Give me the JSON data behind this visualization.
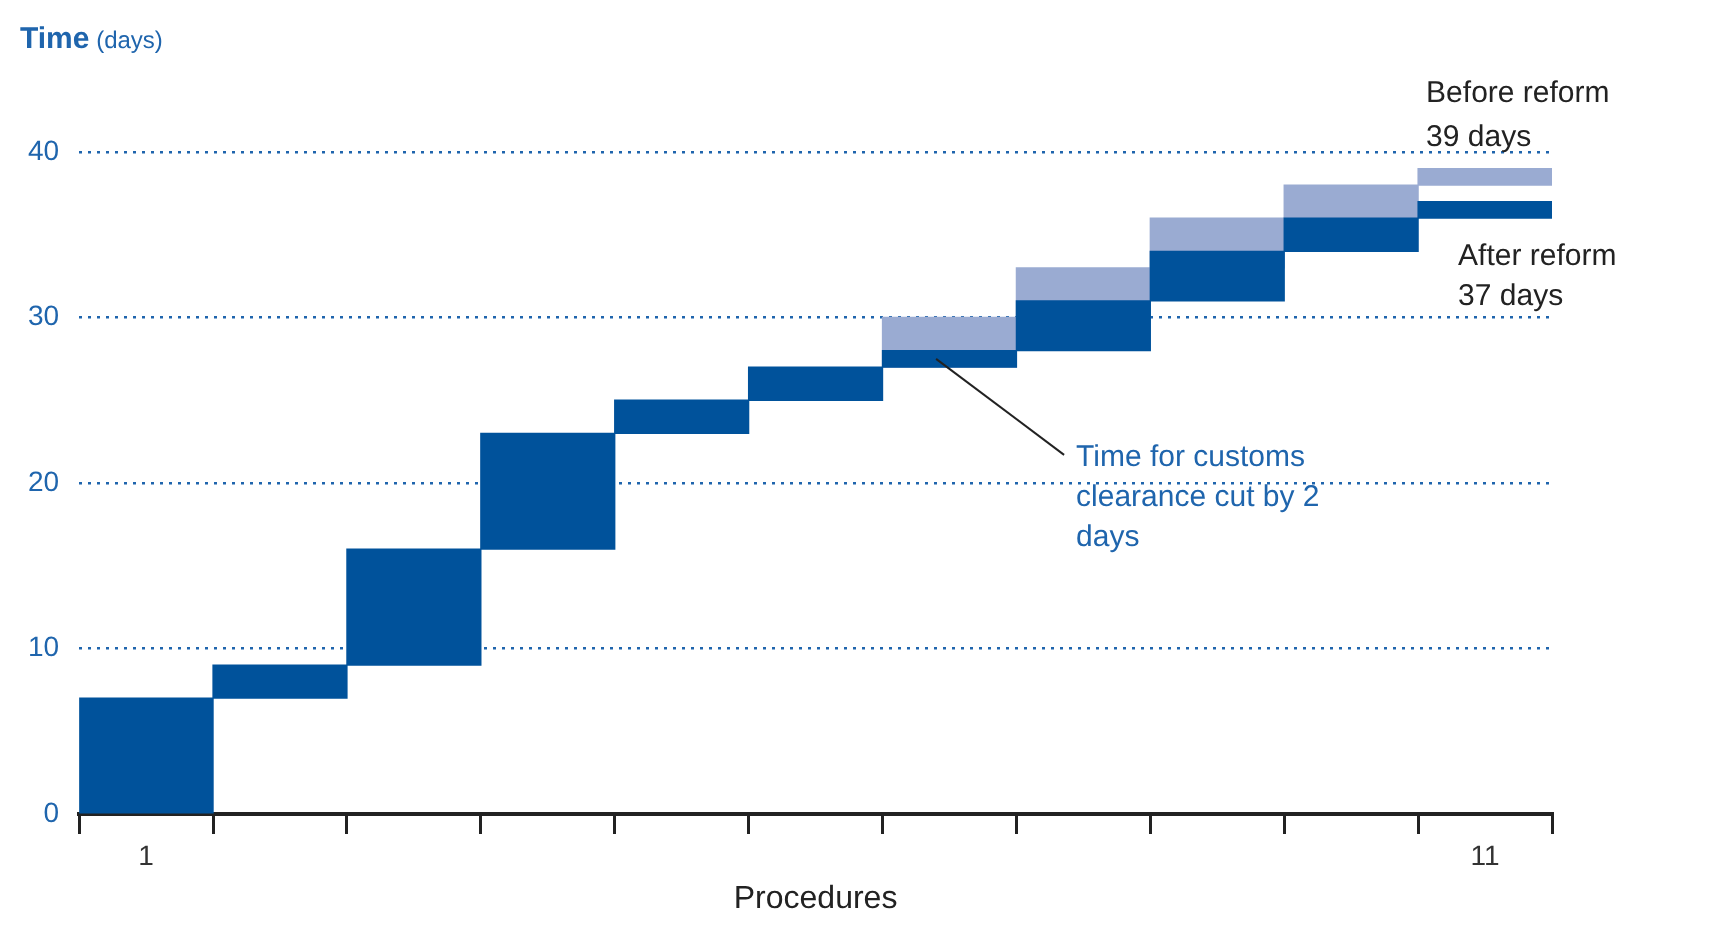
{
  "chart_data": {
    "type": "bar",
    "ylabel": "Time (days)",
    "xlabel": "Procedures",
    "categories": [
      "1",
      null,
      null,
      null,
      null,
      null,
      null,
      null,
      null,
      null,
      "11"
    ],
    "series": [
      {
        "name": "Before reform",
        "color": "#9aabd2",
        "base": [
          null,
          null,
          null,
          null,
          null,
          null,
          27,
          30,
          33,
          36,
          38
        ],
        "values": [
          null,
          null,
          null,
          null,
          null,
          null,
          3,
          3,
          3,
          2,
          1
        ]
      },
      {
        "name": "After reform",
        "color": "#00529b",
        "base": [
          0,
          7,
          9,
          16,
          23,
          25,
          27,
          28,
          31,
          34,
          36
        ],
        "values": [
          7,
          2,
          7,
          7,
          2,
          2,
          1,
          3,
          3,
          2,
          1
        ]
      }
    ],
    "ylim": [
      0,
      40
    ],
    "yticks": [
      0,
      10,
      20,
      30,
      40
    ],
    "grid": "y",
    "legend": false,
    "annotations": [
      {
        "text": "39 days",
        "x": "11",
        "y": 39
      },
      {
        "text": "37 days",
        "x": "11",
        "y": 37
      },
      "Time for customs clearance cut by 2 days"
    ]
  }
}
